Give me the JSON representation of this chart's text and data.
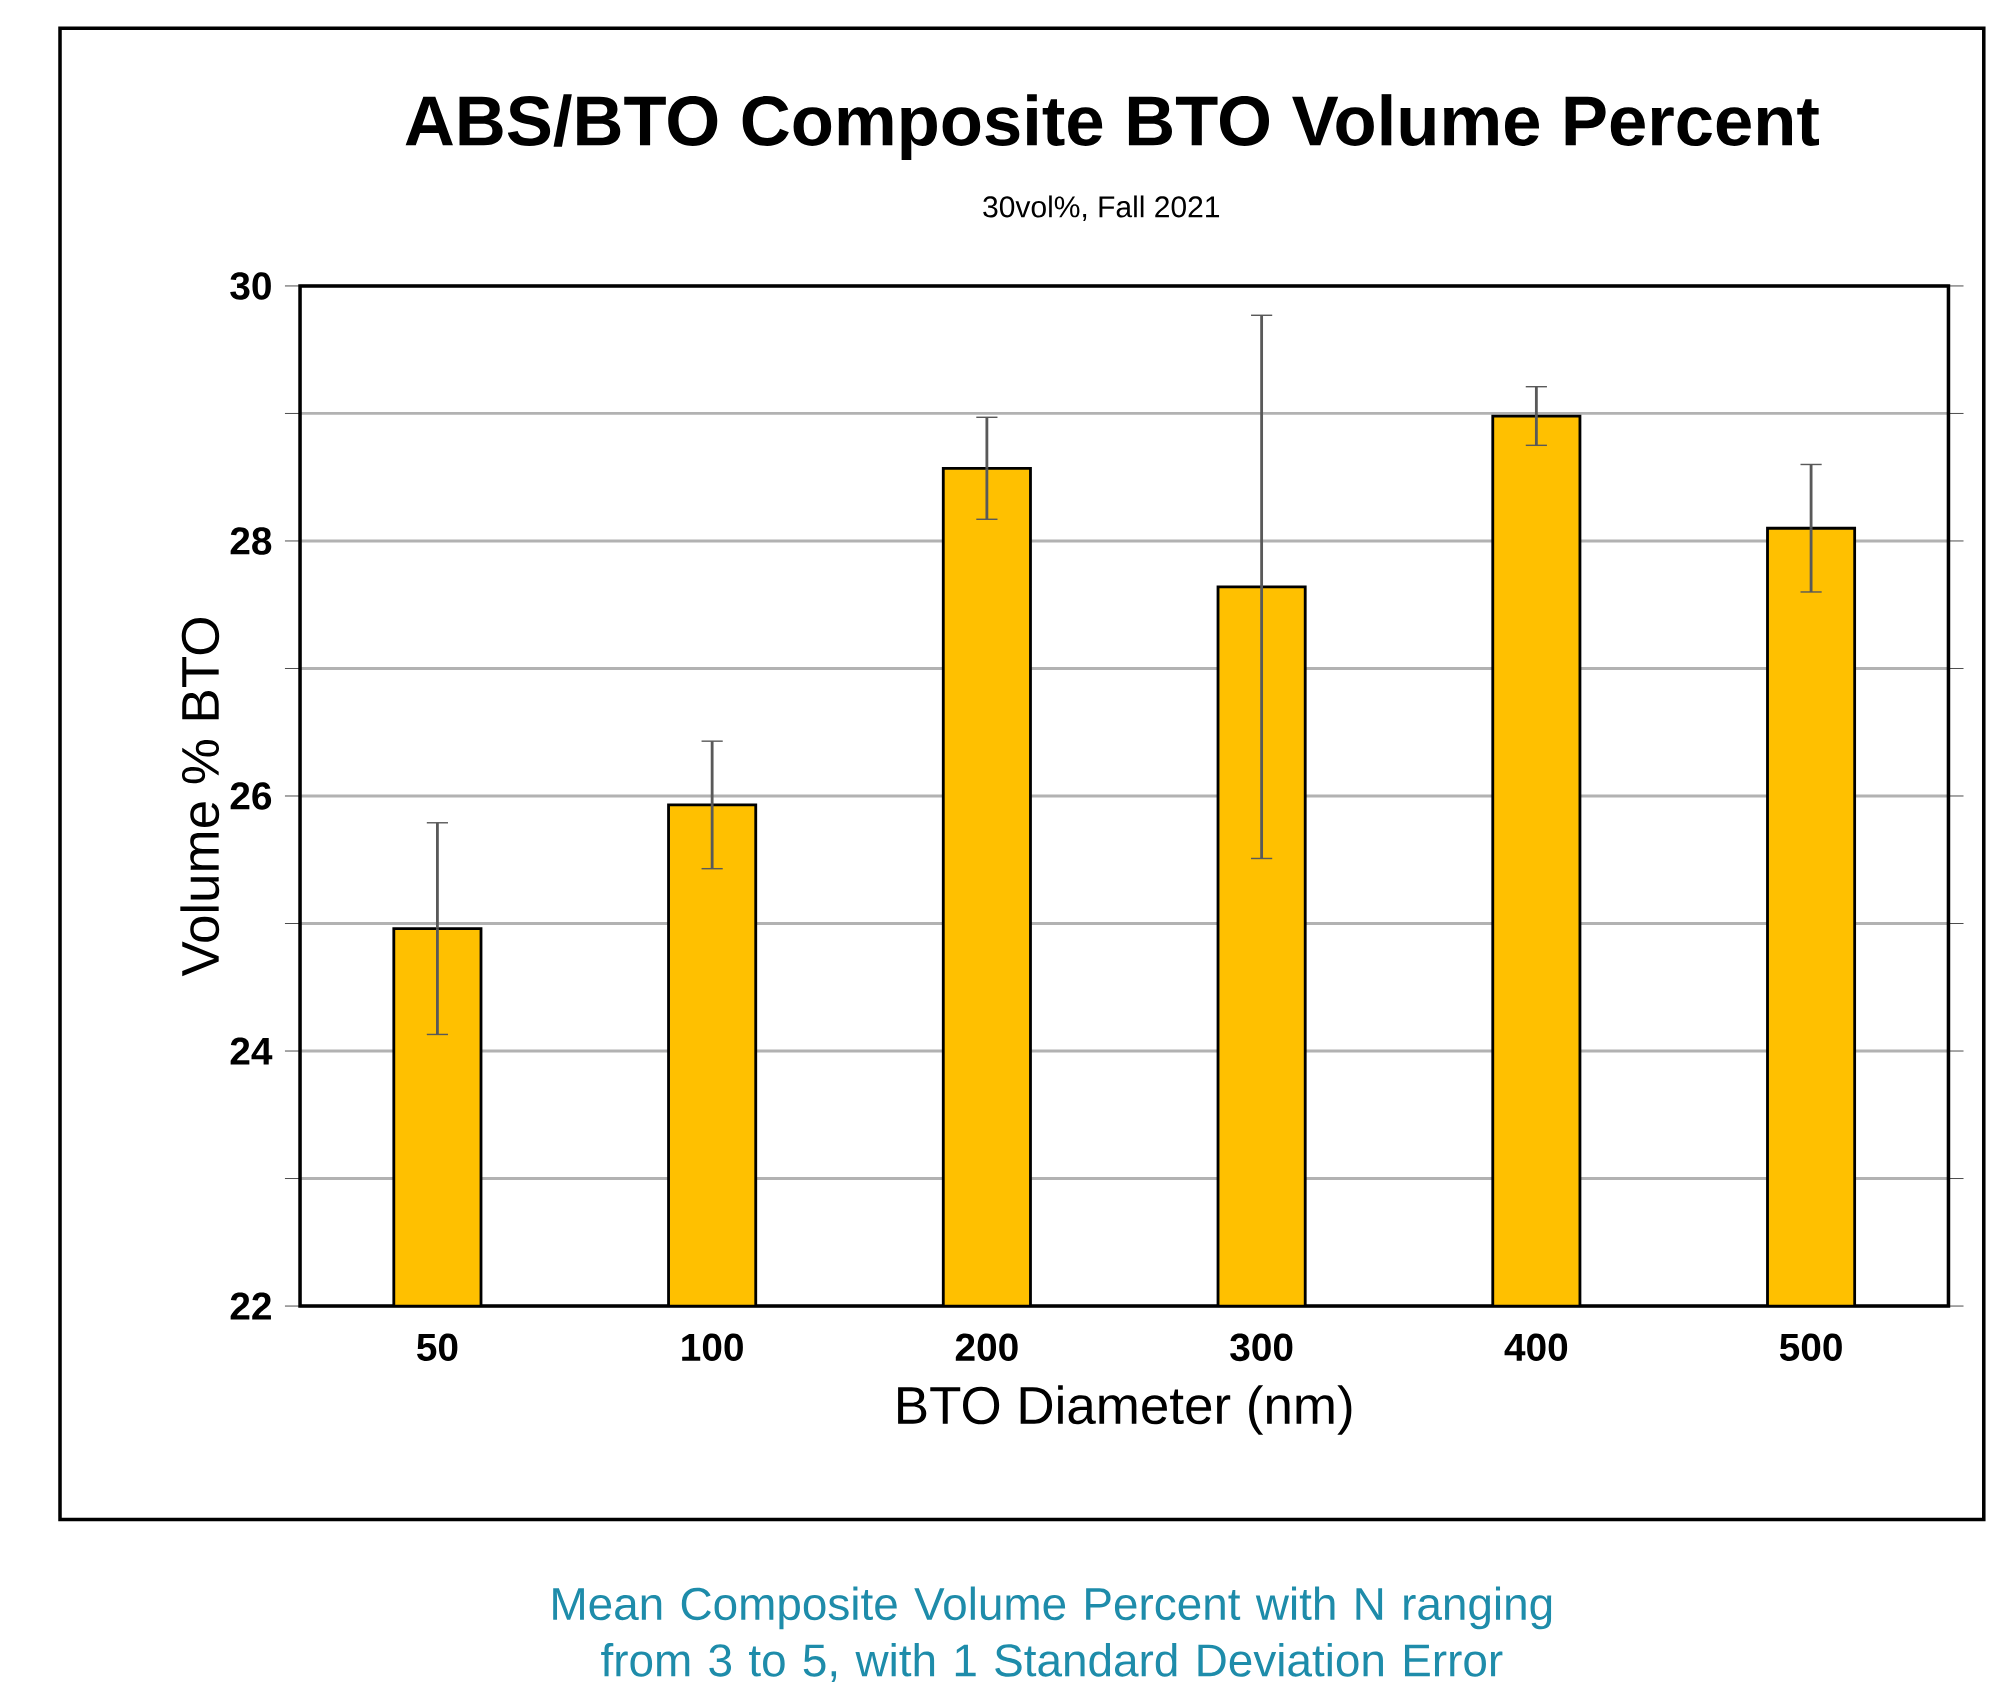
{
  "chart_data": {
    "type": "bar",
    "title": "ABS/BTO Composite BTO Volume Percent",
    "subtitle": "30vol%, Fall 2021",
    "xlabel": "BTO Diameter (nm)",
    "ylabel": "Volume % BTO",
    "categories": [
      "50",
      "100",
      "200",
      "300",
      "400",
      "500"
    ],
    "values": [
      24.96,
      25.93,
      28.57,
      27.64,
      28.98,
      28.1
    ],
    "errors": [
      0.83,
      0.5,
      0.4,
      2.13,
      0.23,
      0.5
    ],
    "color": "#ffc000",
    "ylim": [
      22,
      30
    ],
    "yticks": [
      22,
      {
        "value": 23,
        "label": null
      },
      24,
      {
        "value": 25,
        "label": null
      },
      26,
      {
        "value": 27,
        "label": null
      },
      28,
      {
        "value": 29,
        "label": null
      },
      30
    ],
    "grid": "y",
    "annotations": [
      "Mean Composite Volume Percent with N ranging from 3 to 5,  with 1 Standard Deviation Error"
    ]
  }
}
